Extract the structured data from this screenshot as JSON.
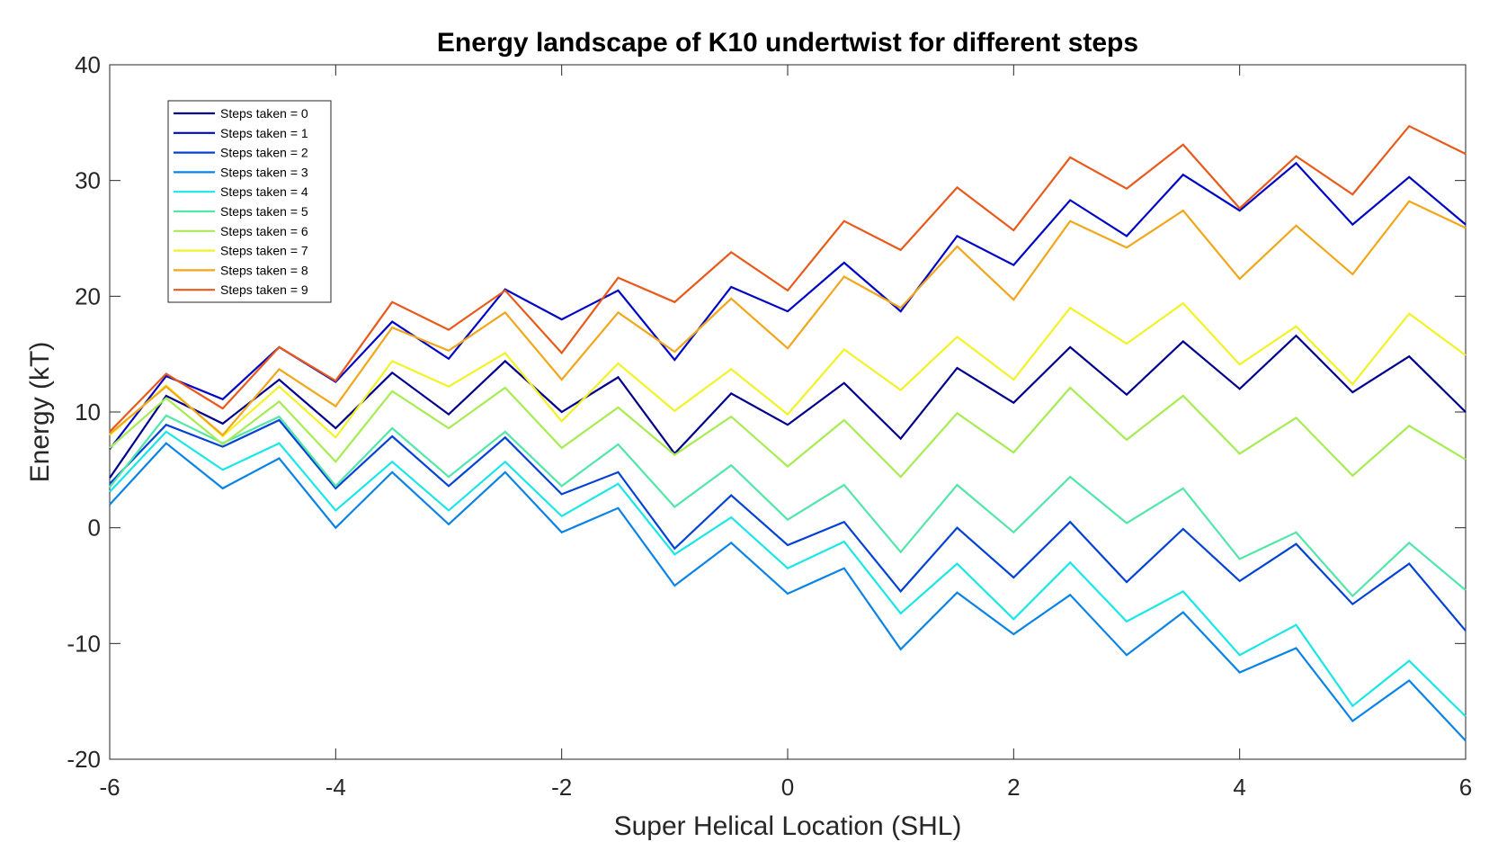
{
  "chart_data": {
    "type": "line",
    "title": "Energy landscape of K10 undertwist for different steps",
    "xlabel": "Super Helical Location (SHL)",
    "ylabel": "Energy (kT)",
    "xlim": [
      -6,
      6
    ],
    "ylim": [
      -20,
      40
    ],
    "xticks": [
      -6,
      -4,
      -2,
      0,
      2,
      4,
      6
    ],
    "yticks": [
      -20,
      -10,
      0,
      10,
      20,
      30,
      40
    ],
    "grid": false,
    "legend_position": "top-left",
    "x": [
      -6,
      -5.5,
      -5,
      -4.5,
      -4,
      -3.5,
      -3,
      -2.5,
      -2,
      -1.5,
      -1,
      -0.5,
      0,
      0.5,
      1,
      1.5,
      2,
      2.5,
      3,
      3.5,
      4,
      4.5,
      5,
      5.5,
      6
    ],
    "series": [
      {
        "name": "Steps taken = 0",
        "color": "#00008f",
        "values": [
          4.3,
          11.4,
          9.0,
          12.8,
          8.6,
          13.4,
          9.8,
          14.4,
          10.0,
          13.0,
          6.4,
          11.6,
          8.9,
          12.5,
          7.7,
          13.8,
          10.8,
          15.6,
          11.5,
          16.1,
          12.0,
          16.6,
          11.7,
          14.8,
          10.0
        ]
      },
      {
        "name": "Steps taken = 1",
        "color": "#0006c6",
        "values": [
          6.8,
          13.1,
          11.1,
          15.6,
          12.6,
          17.8,
          14.6,
          20.6,
          18.0,
          20.5,
          14.5,
          20.8,
          18.7,
          22.9,
          18.7,
          25.2,
          22.7,
          28.3,
          25.2,
          30.5,
          27.4,
          31.5,
          26.2,
          30.3,
          26.2
        ]
      },
      {
        "name": "Steps taken = 2",
        "color": "#0042d6",
        "values": [
          3.8,
          8.9,
          7.0,
          9.3,
          3.4,
          7.9,
          3.6,
          7.8,
          2.9,
          4.8,
          -1.8,
          2.8,
          -1.5,
          0.5,
          -5.5,
          0.0,
          -4.3,
          0.5,
          -4.7,
          -0.1,
          -4.6,
          -1.4,
          -6.6,
          -3.1,
          -8.9
        ]
      },
      {
        "name": "Steps taken = 3",
        "color": "#0983e6",
        "values": [
          2.0,
          7.3,
          3.4,
          6.0,
          0.0,
          4.8,
          0.3,
          4.8,
          -0.4,
          1.7,
          -5.0,
          -1.3,
          -5.7,
          -3.5,
          -10.5,
          -5.6,
          -9.2,
          -5.8,
          -11.0,
          -7.3,
          -12.5,
          -10.4,
          -16.7,
          -13.2,
          -18.4
        ]
      },
      {
        "name": "Steps taken = 4",
        "color": "#19e6e6",
        "values": [
          3.1,
          8.3,
          5.0,
          7.3,
          1.5,
          5.7,
          1.5,
          5.7,
          1.0,
          3.8,
          -2.3,
          0.9,
          -3.5,
          -1.2,
          -7.4,
          -3.1,
          -7.9,
          -3.0,
          -8.1,
          -5.5,
          -11.0,
          -8.4,
          -15.4,
          -11.5,
          -16.3
        ]
      },
      {
        "name": "Steps taken = 5",
        "color": "#52e6a9",
        "values": [
          3.5,
          9.7,
          7.3,
          9.6,
          3.6,
          8.6,
          4.4,
          8.3,
          3.6,
          7.2,
          1.8,
          5.4,
          0.7,
          3.7,
          -2.1,
          3.7,
          -0.4,
          4.4,
          0.4,
          3.4,
          -2.7,
          -0.4,
          -5.9,
          -1.3,
          -5.4
        ]
      },
      {
        "name": "Steps taken = 6",
        "color": "#a6ec52",
        "values": [
          6.9,
          11.2,
          7.2,
          10.9,
          5.7,
          11.8,
          8.6,
          12.1,
          6.9,
          10.4,
          6.3,
          9.6,
          5.3,
          9.3,
          4.4,
          9.9,
          6.5,
          12.1,
          7.6,
          11.4,
          6.4,
          9.5,
          4.5,
          8.8,
          5.9
        ]
      },
      {
        "name": "Steps taken = 7",
        "color": "#f2f226",
        "values": [
          8.0,
          12.3,
          7.9,
          12.2,
          7.8,
          14.4,
          12.2,
          15.1,
          9.2,
          14.2,
          10.1,
          13.7,
          9.8,
          15.4,
          11.9,
          16.5,
          12.8,
          19.0,
          15.9,
          19.4,
          14.1,
          17.4,
          12.4,
          18.5,
          14.9
        ]
      },
      {
        "name": "Steps taken = 8",
        "color": "#f2a61a",
        "values": [
          8.1,
          12.2,
          8.0,
          13.7,
          10.5,
          17.3,
          15.3,
          18.6,
          12.8,
          18.6,
          15.2,
          19.8,
          15.5,
          21.7,
          19.0,
          24.3,
          19.7,
          26.5,
          24.2,
          27.4,
          21.5,
          26.1,
          21.9,
          28.2,
          25.9
        ]
      },
      {
        "name": "Steps taken = 9",
        "color": "#e8591a",
        "values": [
          8.3,
          13.3,
          10.3,
          15.6,
          12.7,
          19.5,
          17.1,
          20.5,
          15.1,
          21.6,
          19.5,
          23.8,
          20.5,
          26.5,
          24.0,
          29.4,
          25.7,
          32.0,
          29.3,
          33.1,
          27.6,
          32.1,
          28.8,
          34.7,
          32.3
        ]
      }
    ]
  }
}
